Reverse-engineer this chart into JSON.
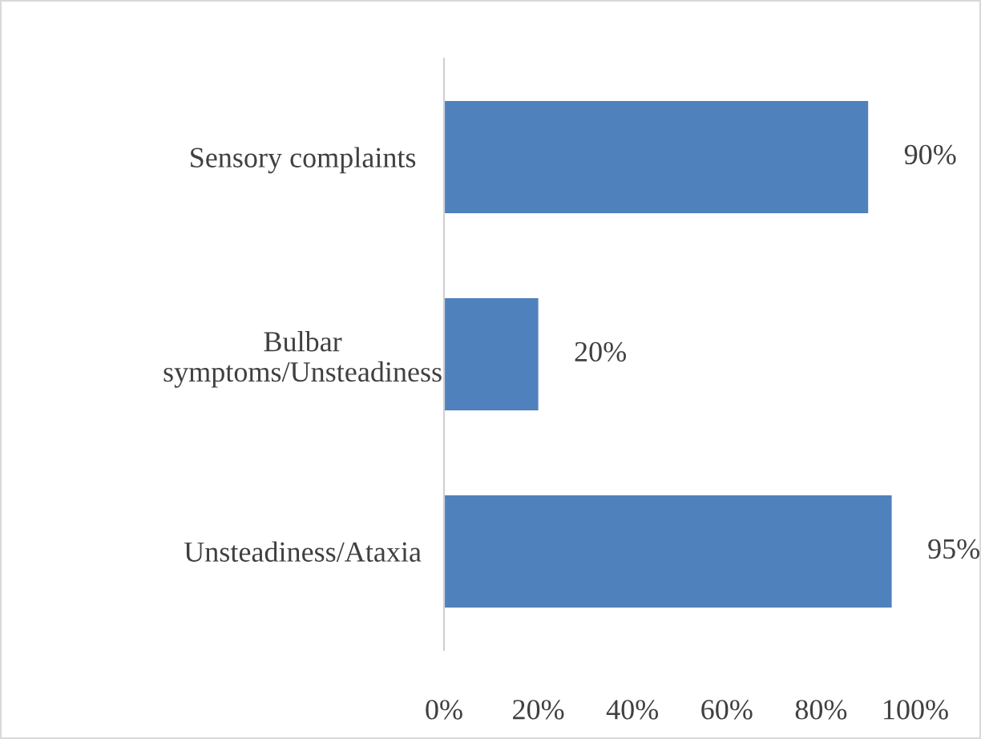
{
  "chart_data": {
    "type": "bar",
    "orientation": "horizontal",
    "categories": [
      "Sensory complaints",
      "Bulbar\nsymptoms/Unsteadiness",
      "Unsteadiness/Ataxia"
    ],
    "values": [
      90,
      20,
      95
    ],
    "color": "#4f81bd",
    "value_labels": [
      "90%",
      "20%",
      "95%"
    ],
    "xlim": [
      0,
      100
    ],
    "xticks": [
      {
        "value": 0,
        "label": "0%"
      },
      {
        "value": 20,
        "label": "20%"
      },
      {
        "value": 40,
        "label": "40%"
      },
      {
        "value": 60,
        "label": "60%"
      },
      {
        "value": 80,
        "label": "80%"
      },
      {
        "value": 100,
        "label": "100%"
      }
    ]
  }
}
